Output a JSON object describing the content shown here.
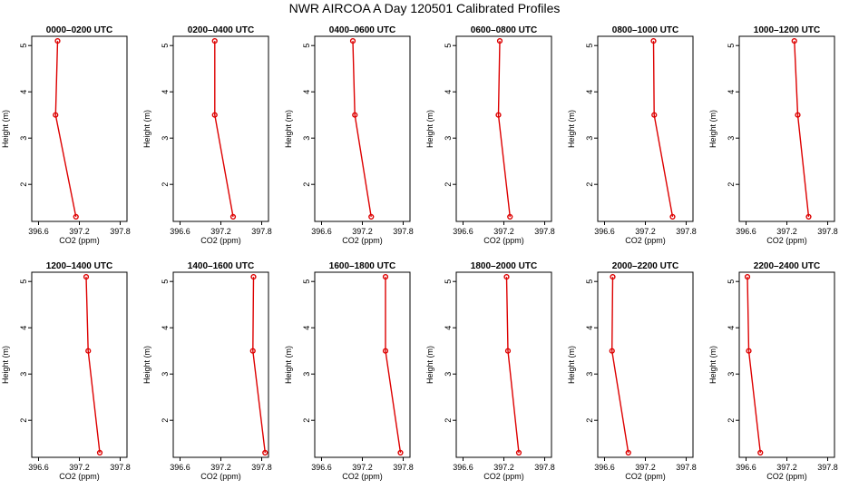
{
  "title": "NWR AIRCOA A  Day 120501  Calibrated Profiles",
  "colors": {
    "line": "#dd0000",
    "axis": "#000000"
  },
  "chart_data": [
    {
      "type": "line",
      "title": "0000–0200 UTC",
      "xlabel": "CO2 (ppm)",
      "ylabel": "Height (m)",
      "xlim": [
        396.5,
        397.9
      ],
      "ylim": [
        1.2,
        5.2
      ],
      "xticks": [
        "396.6",
        "397.2",
        "397.8"
      ],
      "yticks": [
        "2",
        "3",
        "4",
        "5"
      ],
      "series": [
        {
          "name": "profile",
          "x": [
            397.15,
            396.85,
            396.88
          ],
          "y": [
            1.3,
            3.5,
            5.1
          ]
        }
      ]
    },
    {
      "type": "line",
      "title": "0200–0400 UTC",
      "xlabel": "CO2 (ppm)",
      "ylabel": "Height (m)",
      "xlim": [
        396.5,
        397.9
      ],
      "ylim": [
        1.2,
        5.2
      ],
      "xticks": [
        "396.6",
        "397.2",
        "397.8"
      ],
      "yticks": [
        "2",
        "3",
        "4",
        "5"
      ],
      "series": [
        {
          "name": "profile",
          "x": [
            397.38,
            397.11,
            397.11
          ],
          "y": [
            1.3,
            3.5,
            5.1
          ]
        }
      ]
    },
    {
      "type": "line",
      "title": "0400–0600 UTC",
      "xlabel": "CO2 (ppm)",
      "ylabel": "Height (m)",
      "xlim": [
        396.5,
        397.9
      ],
      "ylim": [
        1.2,
        5.2
      ],
      "xticks": [
        "396.6",
        "397.2",
        "397.8"
      ],
      "yticks": [
        "2",
        "3",
        "4",
        "5"
      ],
      "series": [
        {
          "name": "profile",
          "x": [
            397.33,
            397.09,
            397.06
          ],
          "y": [
            1.3,
            3.5,
            5.1
          ]
        }
      ]
    },
    {
      "type": "line",
      "title": "0600–0800 UTC",
      "xlabel": "CO2 (ppm)",
      "ylabel": "Height (m)",
      "xlim": [
        396.5,
        397.9
      ],
      "ylim": [
        1.2,
        5.2
      ],
      "xticks": [
        "396.6",
        "397.2",
        "397.8"
      ],
      "yticks": [
        "2",
        "3",
        "4",
        "5"
      ],
      "series": [
        {
          "name": "profile",
          "x": [
            397.29,
            397.12,
            397.14
          ],
          "y": [
            1.3,
            3.5,
            5.1
          ]
        }
      ]
    },
    {
      "type": "line",
      "title": "0800–1000 UTC",
      "xlabel": "CO2 (ppm)",
      "ylabel": "Height (m)",
      "xlim": [
        396.5,
        397.9
      ],
      "ylim": [
        1.2,
        5.2
      ],
      "xticks": [
        "396.6",
        "397.2",
        "397.8"
      ],
      "yticks": [
        "2",
        "3",
        "4",
        "5"
      ],
      "series": [
        {
          "name": "profile",
          "x": [
            397.6,
            397.33,
            397.32
          ],
          "y": [
            1.3,
            3.5,
            5.1
          ]
        }
      ]
    },
    {
      "type": "line",
      "title": "1000–1200 UTC",
      "xlabel": "CO2 (ppm)",
      "ylabel": "Height (m)",
      "xlim": [
        396.5,
        397.9
      ],
      "ylim": [
        1.2,
        5.2
      ],
      "xticks": [
        "396.6",
        "397.2",
        "397.8"
      ],
      "yticks": [
        "2",
        "3",
        "4",
        "5"
      ],
      "series": [
        {
          "name": "profile",
          "x": [
            397.52,
            397.36,
            397.31
          ],
          "y": [
            1.3,
            3.5,
            5.1
          ]
        }
      ]
    },
    {
      "type": "line",
      "title": "1200–1400 UTC",
      "xlabel": "CO2 (ppm)",
      "ylabel": "Height (m)",
      "xlim": [
        396.5,
        397.9
      ],
      "ylim": [
        1.2,
        5.2
      ],
      "xticks": [
        "396.6",
        "397.2",
        "397.8"
      ],
      "yticks": [
        "2",
        "3",
        "4",
        "5"
      ],
      "series": [
        {
          "name": "profile",
          "x": [
            397.5,
            397.33,
            397.3
          ],
          "y": [
            1.3,
            3.5,
            5.1
          ]
        }
      ]
    },
    {
      "type": "line",
      "title": "1400–1600 UTC",
      "xlabel": "CO2 (ppm)",
      "ylabel": "Height (m)",
      "xlim": [
        396.5,
        397.9
      ],
      "ylim": [
        1.2,
        5.2
      ],
      "xticks": [
        "396.6",
        "397.2",
        "397.8"
      ],
      "yticks": [
        "2",
        "3",
        "4",
        "5"
      ],
      "series": [
        {
          "name": "profile",
          "x": [
            397.85,
            397.67,
            397.68
          ],
          "y": [
            1.3,
            3.5,
            5.1
          ]
        }
      ]
    },
    {
      "type": "line",
      "title": "1600–1800 UTC",
      "xlabel": "CO2 (ppm)",
      "ylabel": "Height (m)",
      "xlim": [
        396.5,
        397.9
      ],
      "ylim": [
        1.2,
        5.2
      ],
      "xticks": [
        "396.6",
        "397.2",
        "397.8"
      ],
      "yticks": [
        "2",
        "3",
        "4",
        "5"
      ],
      "series": [
        {
          "name": "profile",
          "x": [
            397.76,
            397.54,
            397.54
          ],
          "y": [
            1.3,
            3.5,
            5.1
          ]
        }
      ]
    },
    {
      "type": "line",
      "title": "1800–2000 UTC",
      "xlabel": "CO2 (ppm)",
      "ylabel": "Height (m)",
      "xlim": [
        396.5,
        397.9
      ],
      "ylim": [
        1.2,
        5.2
      ],
      "xticks": [
        "396.6",
        "397.2",
        "397.8"
      ],
      "yticks": [
        "2",
        "3",
        "4",
        "5"
      ],
      "series": [
        {
          "name": "profile",
          "x": [
            397.42,
            397.26,
            397.24
          ],
          "y": [
            1.3,
            3.5,
            5.1
          ]
        }
      ]
    },
    {
      "type": "line",
      "title": "2000–2200 UTC",
      "xlabel": "CO2 (ppm)",
      "ylabel": "Height (m)",
      "xlim": [
        396.5,
        397.9
      ],
      "ylim": [
        1.2,
        5.2
      ],
      "xticks": [
        "396.6",
        "397.2",
        "397.8"
      ],
      "yticks": [
        "2",
        "3",
        "4",
        "5"
      ],
      "series": [
        {
          "name": "profile",
          "x": [
            396.95,
            396.71,
            396.72
          ],
          "y": [
            1.3,
            3.5,
            5.1
          ]
        }
      ]
    },
    {
      "type": "line",
      "title": "2200–2400 UTC",
      "xlabel": "CO2 (ppm)",
      "ylabel": "Height (m)",
      "xlim": [
        396.5,
        397.9
      ],
      "ylim": [
        1.2,
        5.2
      ],
      "xticks": [
        "396.6",
        "397.2",
        "397.8"
      ],
      "yticks": [
        "2",
        "3",
        "4",
        "5"
      ],
      "series": [
        {
          "name": "profile",
          "x": [
            396.81,
            396.64,
            396.62
          ],
          "y": [
            1.3,
            3.5,
            5.1
          ]
        }
      ]
    }
  ]
}
